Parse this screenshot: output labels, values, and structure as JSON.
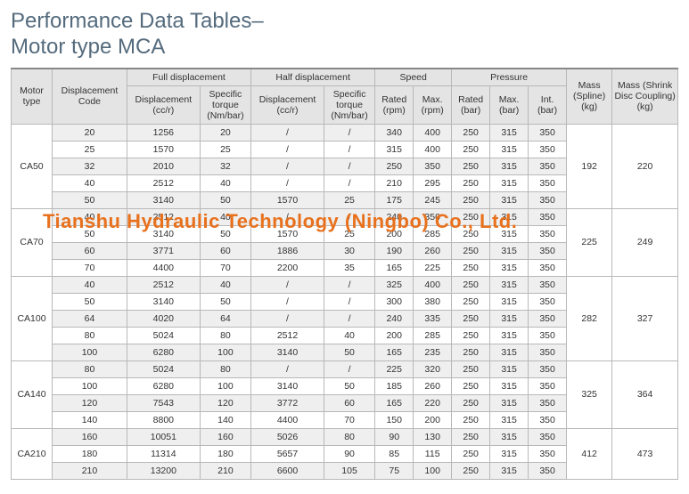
{
  "title_line1": "Performance Data Tables–",
  "title_line2": "Motor type MCA",
  "watermark": "Tianshu Hydraulic Technology (Ningbo) Co., Ltd.",
  "headers": {
    "motor_type": "Motor type",
    "disp_code": "Displacement Code",
    "full_disp": "Full displacement",
    "half_disp": "Half displacement",
    "speed": "Speed",
    "pressure": "Pressure",
    "mass_spline": "Mass (Spline) (kg)",
    "mass_shrink": "Mass (Shrink Disc Coupling) (kg)",
    "disp_ccr": "Displacement (cc/r)",
    "spec_torque": "Specific torque (Nm/bar)",
    "rated_rpm": "Rated (rpm)",
    "max_rpm": "Max. (rpm)",
    "rated_bar": "Rated (bar)",
    "max_bar": "Max. (bar)",
    "int_bar": "Int. (bar)"
  },
  "col_widths": {
    "motor": 45,
    "code": 82,
    "fd_disp": 80,
    "fd_torq": 56,
    "hd_disp": 80,
    "hd_torq": 56,
    "sp_rated": 42,
    "sp_max": 42,
    "pr_rated": 42,
    "pr_max": 42,
    "pr_int": 42,
    "mass_sp": 50,
    "mass_sh": 72
  },
  "groups": [
    {
      "motor": "CA50",
      "mass_spline": "192",
      "mass_shrink": "220",
      "rows": [
        {
          "code": "20",
          "fd_disp": "1256",
          "fd_torq": "20",
          "hd_disp": "/",
          "hd_torq": "/",
          "sp_r": "340",
          "sp_m": "400",
          "pr_r": "250",
          "pr_m": "315",
          "pr_i": "350"
        },
        {
          "code": "25",
          "fd_disp": "1570",
          "fd_torq": "25",
          "hd_disp": "/",
          "hd_torq": "/",
          "sp_r": "315",
          "sp_m": "400",
          "pr_r": "250",
          "pr_m": "315",
          "pr_i": "350"
        },
        {
          "code": "32",
          "fd_disp": "2010",
          "fd_torq": "32",
          "hd_disp": "/",
          "hd_torq": "/",
          "sp_r": "250",
          "sp_m": "350",
          "pr_r": "250",
          "pr_m": "315",
          "pr_i": "350"
        },
        {
          "code": "40",
          "fd_disp": "2512",
          "fd_torq": "40",
          "hd_disp": "/",
          "hd_torq": "/",
          "sp_r": "210",
          "sp_m": "295",
          "pr_r": "250",
          "pr_m": "315",
          "pr_i": "350"
        },
        {
          "code": "50",
          "fd_disp": "3140",
          "fd_torq": "50",
          "hd_disp": "1570",
          "hd_torq": "25",
          "sp_r": "175",
          "sp_m": "245",
          "pr_r": "250",
          "pr_m": "315",
          "pr_i": "350"
        }
      ]
    },
    {
      "motor": "CA70",
      "mass_spline": "225",
      "mass_shrink": "249",
      "rows": [
        {
          "code": "40",
          "fd_disp": "2512",
          "fd_torq": "40",
          "hd_disp": "/",
          "hd_torq": "/",
          "sp_r": "240",
          "sp_m": "350",
          "pr_r": "250",
          "pr_m": "315",
          "pr_i": "350"
        },
        {
          "code": "50",
          "fd_disp": "3140",
          "fd_torq": "50",
          "hd_disp": "1570",
          "hd_torq": "25",
          "sp_r": "200",
          "sp_m": "285",
          "pr_r": "250",
          "pr_m": "315",
          "pr_i": "350"
        },
        {
          "code": "60",
          "fd_disp": "3771",
          "fd_torq": "60",
          "hd_disp": "1886",
          "hd_torq": "30",
          "sp_r": "190",
          "sp_m": "260",
          "pr_r": "250",
          "pr_m": "315",
          "pr_i": "350"
        },
        {
          "code": "70",
          "fd_disp": "4400",
          "fd_torq": "70",
          "hd_disp": "2200",
          "hd_torq": "35",
          "sp_r": "165",
          "sp_m": "225",
          "pr_r": "250",
          "pr_m": "315",
          "pr_i": "350"
        }
      ]
    },
    {
      "motor": "CA100",
      "mass_spline": "282",
      "mass_shrink": "327",
      "rows": [
        {
          "code": "40",
          "fd_disp": "2512",
          "fd_torq": "40",
          "hd_disp": "/",
          "hd_torq": "/",
          "sp_r": "325",
          "sp_m": "400",
          "pr_r": "250",
          "pr_m": "315",
          "pr_i": "350"
        },
        {
          "code": "50",
          "fd_disp": "3140",
          "fd_torq": "50",
          "hd_disp": "/",
          "hd_torq": "/",
          "sp_r": "300",
          "sp_m": "380",
          "pr_r": "250",
          "pr_m": "315",
          "pr_i": "350"
        },
        {
          "code": "64",
          "fd_disp": "4020",
          "fd_torq": "64",
          "hd_disp": "/",
          "hd_torq": "/",
          "sp_r": "240",
          "sp_m": "335",
          "pr_r": "250",
          "pr_m": "315",
          "pr_i": "350"
        },
        {
          "code": "80",
          "fd_disp": "5024",
          "fd_torq": "80",
          "hd_disp": "2512",
          "hd_torq": "40",
          "sp_r": "200",
          "sp_m": "285",
          "pr_r": "250",
          "pr_m": "315",
          "pr_i": "350"
        },
        {
          "code": "100",
          "fd_disp": "6280",
          "fd_torq": "100",
          "hd_disp": "3140",
          "hd_torq": "50",
          "sp_r": "165",
          "sp_m": "235",
          "pr_r": "250",
          "pr_m": "315",
          "pr_i": "350"
        }
      ]
    },
    {
      "motor": "CA140",
      "mass_spline": "325",
      "mass_shrink": "364",
      "rows": [
        {
          "code": "80",
          "fd_disp": "5024",
          "fd_torq": "80",
          "hd_disp": "/",
          "hd_torq": "/",
          "sp_r": "225",
          "sp_m": "320",
          "pr_r": "250",
          "pr_m": "315",
          "pr_i": "350"
        },
        {
          "code": "100",
          "fd_disp": "6280",
          "fd_torq": "100",
          "hd_disp": "3140",
          "hd_torq": "50",
          "sp_r": "185",
          "sp_m": "260",
          "pr_r": "250",
          "pr_m": "315",
          "pr_i": "350"
        },
        {
          "code": "120",
          "fd_disp": "7543",
          "fd_torq": "120",
          "hd_disp": "3772",
          "hd_torq": "60",
          "sp_r": "165",
          "sp_m": "220",
          "pr_r": "250",
          "pr_m": "315",
          "pr_i": "350"
        },
        {
          "code": "140",
          "fd_disp": "8800",
          "fd_torq": "140",
          "hd_disp": "4400",
          "hd_torq": "70",
          "sp_r": "150",
          "sp_m": "200",
          "pr_r": "250",
          "pr_m": "315",
          "pr_i": "350"
        }
      ]
    },
    {
      "motor": "CA210",
      "mass_spline": "412",
      "mass_shrink": "473",
      "rows": [
        {
          "code": "160",
          "fd_disp": "10051",
          "fd_torq": "160",
          "hd_disp": "5026",
          "hd_torq": "80",
          "sp_r": "90",
          "sp_m": "130",
          "pr_r": "250",
          "pr_m": "315",
          "pr_i": "350"
        },
        {
          "code": "180",
          "fd_disp": "11314",
          "fd_torq": "180",
          "hd_disp": "5657",
          "hd_torq": "90",
          "sp_r": "85",
          "sp_m": "115",
          "pr_r": "250",
          "pr_m": "315",
          "pr_i": "350"
        },
        {
          "code": "210",
          "fd_disp": "13200",
          "fd_torq": "210",
          "hd_disp": "6600",
          "hd_torq": "105",
          "sp_r": "75",
          "sp_m": "100",
          "pr_r": "250",
          "pr_m": "315",
          "pr_i": "350"
        }
      ]
    }
  ]
}
